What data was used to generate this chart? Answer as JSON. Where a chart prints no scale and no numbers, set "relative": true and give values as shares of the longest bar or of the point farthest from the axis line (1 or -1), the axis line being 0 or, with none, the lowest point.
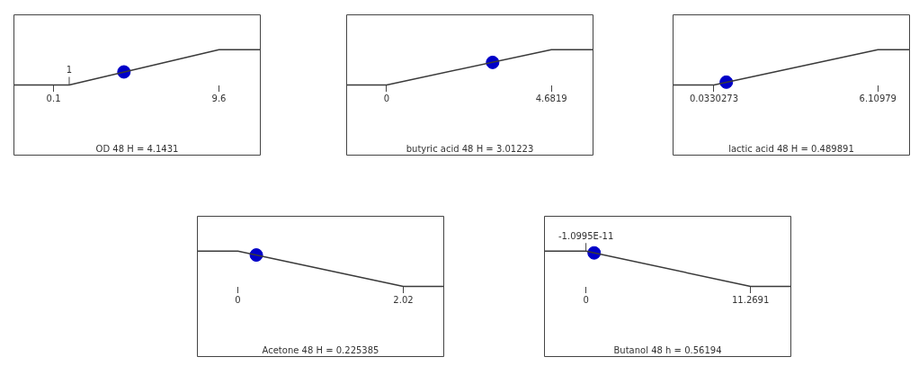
{
  "chart_data": [
    {
      "type": "line",
      "relative": true,
      "xlabel": "OD 48 H = 4.1431",
      "xlim": [
        -2.2,
        12.0
      ],
      "xticks": [
        0.1,
        9.6
      ],
      "annotations": [
        {
          "text": "1",
          "x": 1,
          "y": 0
        }
      ],
      "series": [
        {
          "x": [
            -2.2,
            1,
            9.6,
            12.0
          ],
          "values": [
            0,
            0,
            1,
            1
          ],
          "color": "#3a3a3a",
          "marker": "none"
        },
        {
          "type": "scatter",
          "x": [
            4.1431
          ],
          "values": [
            0.37
          ],
          "color": "#0000c8",
          "marker": "circle"
        }
      ]
    },
    {
      "type": "line",
      "relative": true,
      "xlabel": "butyric acid 48 H = 3.01223",
      "xlim": [
        -1.15,
        5.88
      ],
      "xticks": [
        0,
        4.6819
      ],
      "series": [
        {
          "x": [
            -1.15,
            0,
            4.6819,
            5.88
          ],
          "values": [
            0,
            0,
            1,
            1
          ],
          "color": "#3a3a3a",
          "marker": "none"
        },
        {
          "type": "scatter",
          "x": [
            3.01223
          ],
          "values": [
            0.64
          ],
          "color": "#0000c8",
          "marker": "circle"
        }
      ]
    },
    {
      "type": "line",
      "relative": true,
      "xlabel": "lactic acid 48 H = 0.489891",
      "xlim": [
        -1.5,
        7.3
      ],
      "xticks": [
        0.0330273,
        6.10979
      ],
      "series": [
        {
          "x": [
            -1.5,
            0.0330273,
            6.10979,
            7.3
          ],
          "values": [
            0,
            0,
            1,
            1
          ],
          "color": "#3a3a3a",
          "marker": "none"
        },
        {
          "type": "scatter",
          "x": [
            0.489891
          ],
          "values": [
            0.08
          ],
          "color": "#0000c8",
          "marker": "circle"
        }
      ]
    },
    {
      "type": "line",
      "relative": true,
      "xlabel": "Acetone 48 H = 0.225385",
      "xlim": [
        -0.5,
        2.52
      ],
      "xticks": [
        0,
        2.02
      ],
      "series": [
        {
          "x": [
            -0.5,
            0,
            2.02,
            2.52
          ],
          "values": [
            1,
            1,
            0,
            0
          ],
          "color": "#3a3a3a",
          "marker": "none"
        },
        {
          "type": "scatter",
          "x": [
            0.225385
          ],
          "values": [
            0.89
          ],
          "color": "#0000c8",
          "marker": "circle"
        }
      ]
    },
    {
      "type": "line",
      "relative": true,
      "xlabel": "Butanol 48 h = 0.56194",
      "xlim": [
        -2.87,
        14.06
      ],
      "xticks": [
        0,
        11.2691
      ],
      "annotations": [
        {
          "text": "-1.0995E-11",
          "x": -1.0995e-11,
          "y": 1
        }
      ],
      "series": [
        {
          "x": [
            -2.87,
            0,
            11.2691,
            14.06
          ],
          "values": [
            1,
            1,
            0,
            0
          ],
          "color": "#3a3a3a",
          "marker": "none"
        },
        {
          "type": "scatter",
          "x": [
            0.56194
          ],
          "values": [
            0.95
          ],
          "color": "#0000c8",
          "marker": "circle"
        }
      ]
    }
  ]
}
